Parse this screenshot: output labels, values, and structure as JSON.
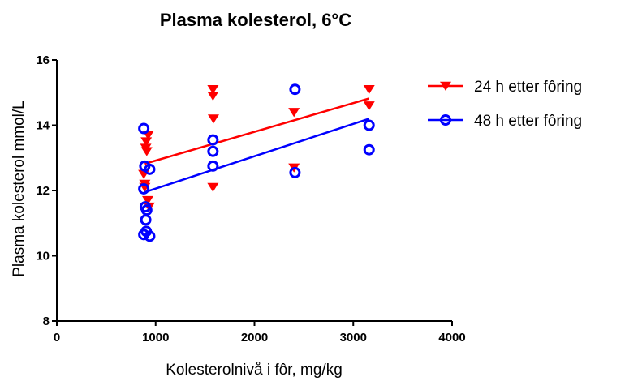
{
  "chart_data": {
    "type": "scatter",
    "title": "Plasma kolesterol, 6°C",
    "xlabel": "Kolesterolnivå i fôr, mg/kg",
    "ylabel": "Plasma kolesterol mmol/L",
    "xlim": [
      0,
      4000
    ],
    "ylim": [
      8,
      16
    ],
    "x_ticks": [
      0,
      1000,
      2000,
      3000,
      4000
    ],
    "y_ticks": [
      8,
      10,
      12,
      14,
      16
    ],
    "x_tick_labels": [
      "0",
      "1000",
      "2000",
      "3000",
      "4000"
    ],
    "y_tick_labels": [
      "8",
      "10",
      "12",
      "14",
      "16"
    ],
    "grid": false,
    "legend_position": "right",
    "series": [
      {
        "name": "24 h etter fôring",
        "color": "#ff0000",
        "marker": "triangle-down",
        "points": [
          {
            "x": 880,
            "y": 12.5
          },
          {
            "x": 890,
            "y": 12.2
          },
          {
            "x": 890,
            "y": 12.1
          },
          {
            "x": 900,
            "y": 13.3
          },
          {
            "x": 905,
            "y": 13.5
          },
          {
            "x": 910,
            "y": 13.2
          },
          {
            "x": 920,
            "y": 11.7
          },
          {
            "x": 925,
            "y": 13.7
          },
          {
            "x": 935,
            "y": 11.5
          },
          {
            "x": 1580,
            "y": 15.1
          },
          {
            "x": 1580,
            "y": 14.9
          },
          {
            "x": 1585,
            "y": 14.2
          },
          {
            "x": 1580,
            "y": 12.1
          },
          {
            "x": 2400,
            "y": 14.4
          },
          {
            "x": 2400,
            "y": 12.7
          },
          {
            "x": 3160,
            "y": 15.1
          },
          {
            "x": 3160,
            "y": 14.6
          }
        ],
        "fit_line": {
          "x": [
            890,
            3160
          ],
          "y": [
            12.82,
            14.82
          ]
        }
      },
      {
        "name": "48 h etter fôring",
        "color": "#0000ff",
        "marker": "circle-open",
        "points": [
          {
            "x": 880,
            "y": 13.9
          },
          {
            "x": 890,
            "y": 12.75
          },
          {
            "x": 880,
            "y": 12.05
          },
          {
            "x": 895,
            "y": 11.5
          },
          {
            "x": 910,
            "y": 11.4
          },
          {
            "x": 900,
            "y": 11.1
          },
          {
            "x": 880,
            "y": 10.65
          },
          {
            "x": 905,
            "y": 10.75
          },
          {
            "x": 940,
            "y": 10.6
          },
          {
            "x": 940,
            "y": 12.65
          },
          {
            "x": 1580,
            "y": 13.55
          },
          {
            "x": 1580,
            "y": 13.2
          },
          {
            "x": 1580,
            "y": 12.75
          },
          {
            "x": 2410,
            "y": 15.1
          },
          {
            "x": 2410,
            "y": 12.55
          },
          {
            "x": 3160,
            "y": 14.0
          },
          {
            "x": 3160,
            "y": 13.25
          }
        ],
        "fit_line": {
          "x": [
            890,
            3160
          ],
          "y": [
            11.95,
            14.2
          ]
        }
      }
    ]
  }
}
